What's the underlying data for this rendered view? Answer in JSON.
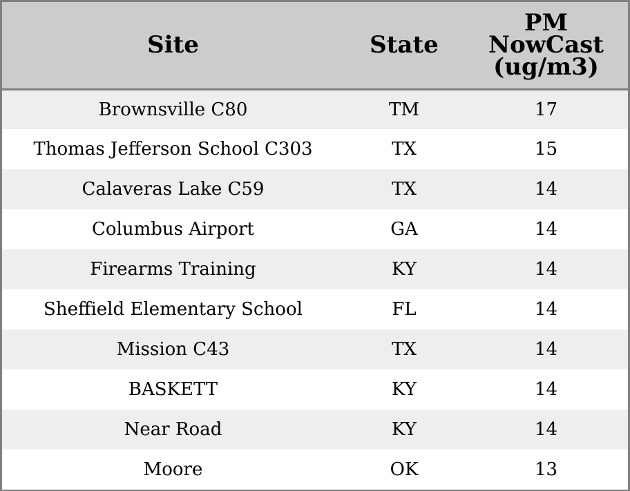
{
  "table": {
    "headers": {
      "site": "Site",
      "state": "State",
      "pm_line1": "PM",
      "pm_line2": "NowCast",
      "pm_line3": "(ug/m3)"
    },
    "rows": [
      {
        "site": "Brownsville C80",
        "state": "TM",
        "pm": "17"
      },
      {
        "site": "Thomas Jefferson School C303",
        "state": "TX",
        "pm": "15"
      },
      {
        "site": "Calaveras Lake C59",
        "state": "TX",
        "pm": "14"
      },
      {
        "site": "Columbus Airport",
        "state": "GA",
        "pm": "14"
      },
      {
        "site": "Firearms Training",
        "state": "KY",
        "pm": "14"
      },
      {
        "site": "Sheffield Elementary School",
        "state": "FL",
        "pm": "14"
      },
      {
        "site": "Mission C43",
        "state": "TX",
        "pm": "14"
      },
      {
        "site": "BASKETT",
        "state": "KY",
        "pm": "14"
      },
      {
        "site": "Near Road",
        "state": "KY",
        "pm": "14"
      },
      {
        "site": "Moore",
        "state": "OK",
        "pm": "13"
      }
    ]
  },
  "colors": {
    "header_bg": "#cccccc",
    "row_alt_bg": "#eeeeee",
    "row_bg": "#ffffff",
    "border": "#7f7f7f"
  }
}
